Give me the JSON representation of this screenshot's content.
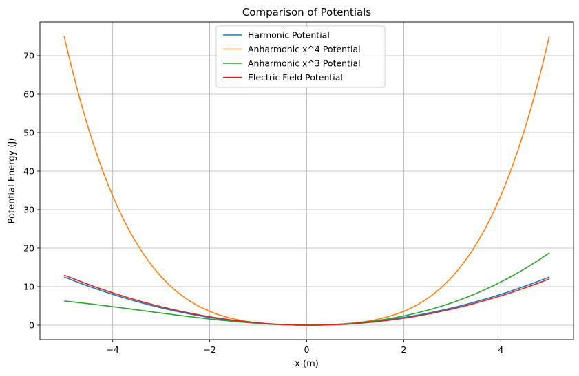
{
  "chart_data": {
    "type": "line",
    "title": "Comparison of Potentials",
    "xlabel": "x (m)",
    "ylabel": "Potential Energy (J)",
    "xlim": [
      -5.5,
      5.5
    ],
    "ylim": [
      -3.75,
      78.75
    ],
    "xticks": [
      -4,
      -2,
      0,
      2,
      4
    ],
    "yticks": [
      0,
      10,
      20,
      30,
      40,
      50,
      60,
      70
    ],
    "grid": true,
    "legend_position": "upper-center",
    "x_range": [
      -5,
      5
    ],
    "series": [
      {
        "name": "Harmonic Potential",
        "color": "#1f77b4",
        "formula": "0.5*x^2"
      },
      {
        "name": "Anharmonic x^4 Potential",
        "color": "#ff7f0e",
        "formula": "0.5*x^2 + 0.1*x^4"
      },
      {
        "name": "Anharmonic x^3 Potential",
        "color": "#2ca02c",
        "formula": "0.5*x^2 + 0.05*x^3"
      },
      {
        "name": "Electric Field Potential",
        "color": "#d62728",
        "formula": "0.5*x^2 - 0.1*x"
      }
    ]
  }
}
